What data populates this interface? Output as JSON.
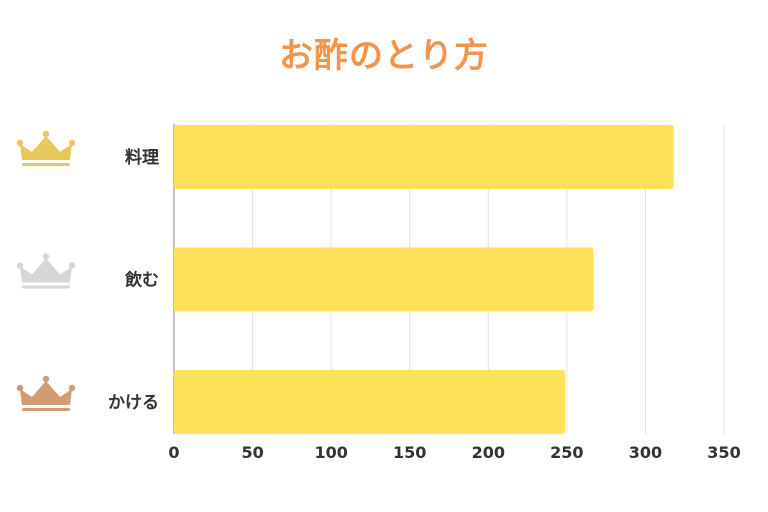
{
  "colors": {
    "title": "#f4934a",
    "bar": "#ffe15a",
    "grid": "#e3e3e3",
    "axis": "#9a9a9a",
    "label": "#333333",
    "crown_gold": "#e6c95a",
    "crown_silver": "#d6d6d6",
    "crown_bronze": "#d49a72"
  },
  "chart_data": {
    "type": "bar",
    "orientation": "horizontal",
    "title": "お酢のとり方",
    "categories": [
      "料理",
      "飲む",
      "かける"
    ],
    "values": [
      318,
      267,
      249
    ],
    "xlim": [
      0,
      350
    ],
    "ticks": [
      0,
      50,
      100,
      150,
      200,
      250,
      300,
      350
    ],
    "grid": true,
    "rank_icons": [
      "crown-gold-icon",
      "crown-silver-icon",
      "crown-bronze-icon"
    ]
  }
}
